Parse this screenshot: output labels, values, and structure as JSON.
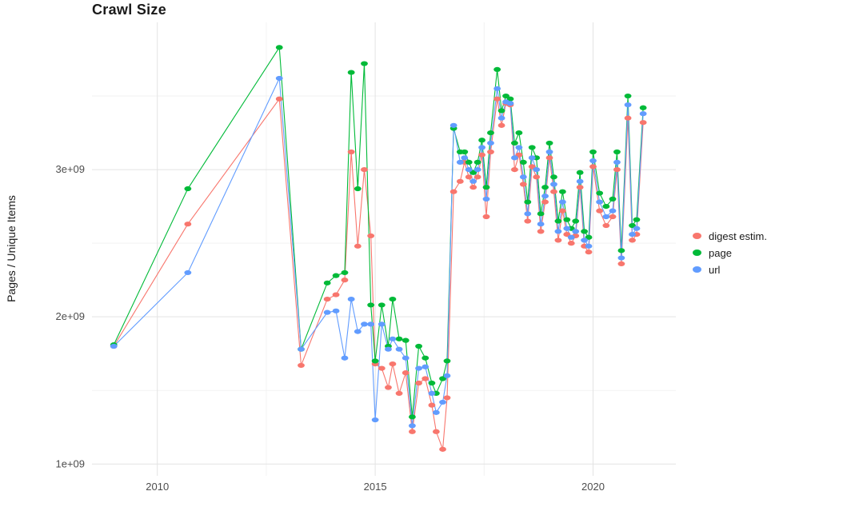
{
  "title": "Crawl Size",
  "colors": {
    "background": "#ffffff",
    "grid_major": "#e3e3e3",
    "grid_minor": "#f2f2f2",
    "tick_label": "#4d4d4d",
    "text": "#1a1a1a"
  },
  "legend": {
    "items": [
      {
        "label": "digest estim.",
        "color": "#F8766D"
      },
      {
        "label": "page",
        "color": "#00BA38"
      },
      {
        "label": "url",
        "color": "#619CFF"
      }
    ]
  },
  "chart_data": {
    "type": "line",
    "title": "Crawl Size",
    "xlabel": "",
    "ylabel": "Pages / Unique Items",
    "xlim": [
      2008.5,
      2021.9
    ],
    "ylim": [
      920000000.0,
      4000000000.0
    ],
    "grid": true,
    "legend_position": "right",
    "x_ticks": [
      {
        "value": 2010,
        "label": "2010"
      },
      {
        "value": 2015,
        "label": "2015"
      },
      {
        "value": 2020,
        "label": "2020"
      }
    ],
    "y_ticks": [
      {
        "value": 1000000000.0,
        "label": "1e+09"
      },
      {
        "value": 2000000000.0,
        "label": "2e+09"
      },
      {
        "value": 3000000000.0,
        "label": "3e+09"
      }
    ],
    "x_minor_gridlines": [
      2012.5,
      2017.5
    ],
    "y_minor_gridlines": [
      1500000000.0,
      2500000000.0,
      3500000000.0
    ],
    "x": [
      2009.0,
      2010.7,
      2012.8,
      2013.3,
      2013.9,
      2014.1,
      2014.3,
      2014.45,
      2014.6,
      2014.75,
      2014.9,
      2015.0,
      2015.15,
      2015.3,
      2015.4,
      2015.55,
      2015.7,
      2015.85,
      2016.0,
      2016.15,
      2016.3,
      2016.4,
      2016.55,
      2016.65,
      2016.8,
      2016.95,
      2017.05,
      2017.15,
      2017.25,
      2017.35,
      2017.45,
      2017.55,
      2017.65,
      2017.8,
      2017.9,
      2018.0,
      2018.1,
      2018.2,
      2018.3,
      2018.4,
      2018.5,
      2018.6,
      2018.7,
      2018.8,
      2018.9,
      2019.0,
      2019.1,
      2019.2,
      2019.3,
      2019.4,
      2019.5,
      2019.6,
      2019.7,
      2019.8,
      2019.9,
      2020.0,
      2020.15,
      2020.3,
      2020.45,
      2020.55,
      2020.65,
      2020.8,
      2020.9,
      2021.0,
      2021.15
    ],
    "series": [
      {
        "name": "digest estim.",
        "color": "#F8766D",
        "marker": "circle",
        "values": [
          1800000000.0,
          2630000000.0,
          3480000000.0,
          1670000000.0,
          2120000000.0,
          2150000000.0,
          2250000000.0,
          3120000000.0,
          2480000000.0,
          3000000000.0,
          2550000000.0,
          1680000000.0,
          1650000000.0,
          1520000000.0,
          1680000000.0,
          1480000000.0,
          1620000000.0,
          1220000000.0,
          1550000000.0,
          1580000000.0,
          1400000000.0,
          1220000000.0,
          1100000000.0,
          1450000000.0,
          2850000000.0,
          2920000000.0,
          3050000000.0,
          2950000000.0,
          2880000000.0,
          2950000000.0,
          3100000000.0,
          2680000000.0,
          3120000000.0,
          3480000000.0,
          3300000000.0,
          3450000000.0,
          3440000000.0,
          3000000000.0,
          3100000000.0,
          2900000000.0,
          2650000000.0,
          3020000000.0,
          2950000000.0,
          2580000000.0,
          2780000000.0,
          3080000000.0,
          2850000000.0,
          2520000000.0,
          2720000000.0,
          2560000000.0,
          2500000000.0,
          2550000000.0,
          2880000000.0,
          2480000000.0,
          2440000000.0,
          3020000000.0,
          2720000000.0,
          2620000000.0,
          2680000000.0,
          3000000000.0,
          2360000000.0,
          3350000000.0,
          2520000000.0,
          2560000000.0,
          3320000000.0
        ]
      },
      {
        "name": "page",
        "color": "#00BA38",
        "marker": "circle",
        "values": [
          1810000000.0,
          2870000000.0,
          3830000000.0,
          1780000000.0,
          2230000000.0,
          2280000000.0,
          2300000000.0,
          3660000000.0,
          2870000000.0,
          3720000000.0,
          2080000000.0,
          1700000000.0,
          2080000000.0,
          1800000000.0,
          2120000000.0,
          1850000000.0,
          1840000000.0,
          1320000000.0,
          1800000000.0,
          1720000000.0,
          1550000000.0,
          1480000000.0,
          1580000000.0,
          1700000000.0,
          3280000000.0,
          3120000000.0,
          3120000000.0,
          3050000000.0,
          2980000000.0,
          3050000000.0,
          3200000000.0,
          2880000000.0,
          3250000000.0,
          3680000000.0,
          3400000000.0,
          3500000000.0,
          3480000000.0,
          3180000000.0,
          3250000000.0,
          3050000000.0,
          2780000000.0,
          3150000000.0,
          3080000000.0,
          2700000000.0,
          2880000000.0,
          3180000000.0,
          2950000000.0,
          2650000000.0,
          2850000000.0,
          2660000000.0,
          2600000000.0,
          2650000000.0,
          2980000000.0,
          2580000000.0,
          2540000000.0,
          3120000000.0,
          2840000000.0,
          2750000000.0,
          2800000000.0,
          3120000000.0,
          2450000000.0,
          3500000000.0,
          2620000000.0,
          2660000000.0,
          3420000000.0
        ]
      },
      {
        "name": "url",
        "color": "#619CFF",
        "marker": "circle",
        "values": [
          1800000000.0,
          2300000000.0,
          3620000000.0,
          1780000000.0,
          2030000000.0,
          2040000000.0,
          1720000000.0,
          2120000000.0,
          1900000000.0,
          1950000000.0,
          1950000000.0,
          1300000000.0,
          1950000000.0,
          1780000000.0,
          1850000000.0,
          1780000000.0,
          1720000000.0,
          1260000000.0,
          1650000000.0,
          1660000000.0,
          1480000000.0,
          1350000000.0,
          1420000000.0,
          1600000000.0,
          3300000000.0,
          3050000000.0,
          3080000000.0,
          3000000000.0,
          2920000000.0,
          3000000000.0,
          3150000000.0,
          2800000000.0,
          3180000000.0,
          3550000000.0,
          3350000000.0,
          3460000000.0,
          3450000000.0,
          3080000000.0,
          3150000000.0,
          2950000000.0,
          2700000000.0,
          3080000000.0,
          3000000000.0,
          2630000000.0,
          2820000000.0,
          3120000000.0,
          2900000000.0,
          2580000000.0,
          2780000000.0,
          2600000000.0,
          2540000000.0,
          2580000000.0,
          2920000000.0,
          2520000000.0,
          2480000000.0,
          3060000000.0,
          2780000000.0,
          2680000000.0,
          2720000000.0,
          3050000000.0,
          2400000000.0,
          3440000000.0,
          2560000000.0,
          2600000000.0,
          3380000000.0
        ]
      }
    ]
  }
}
